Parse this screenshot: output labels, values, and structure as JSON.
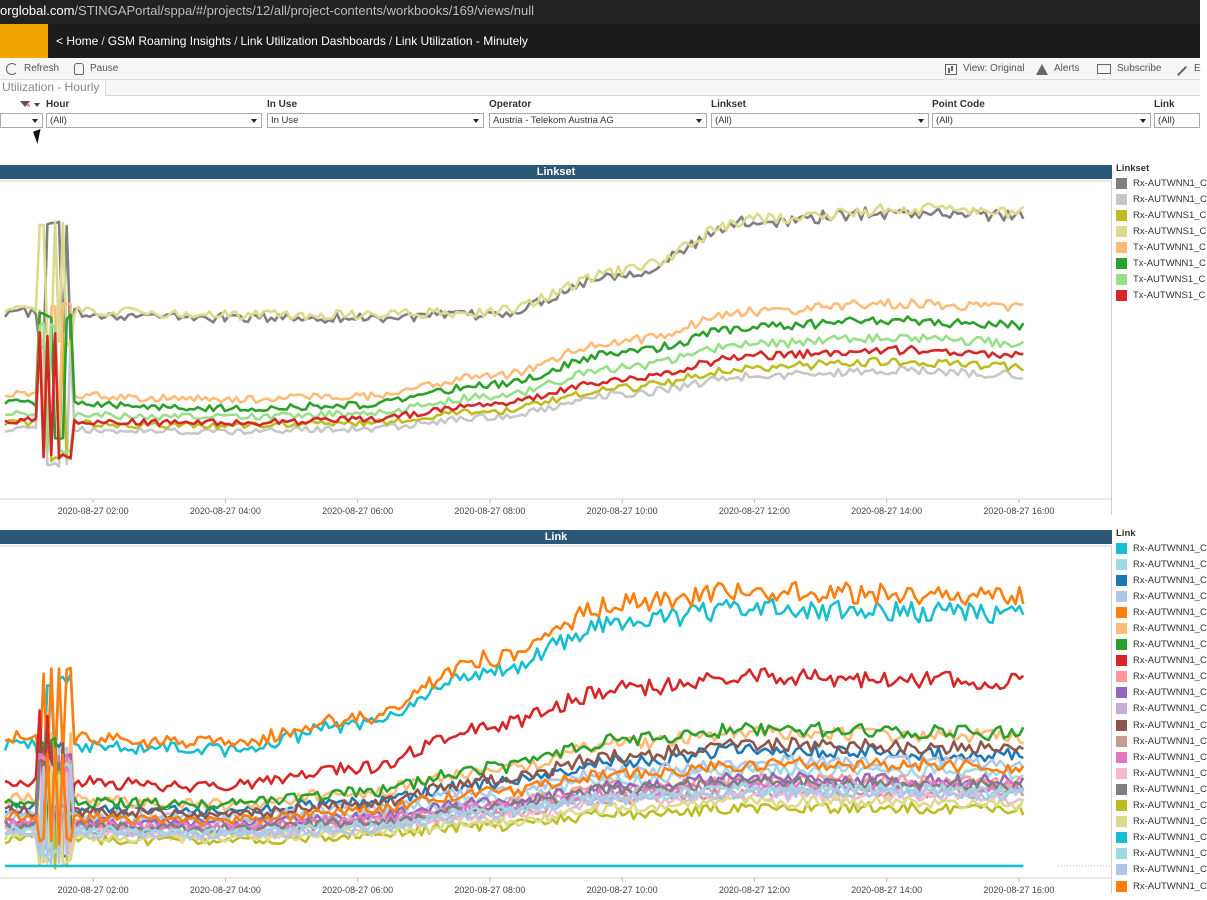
{
  "browser": {
    "url_host": "orglobal.com",
    "url_path": "/STINGAPortal/sppa/#/projects/12/all/project-contents/workbooks/169/views/null"
  },
  "breadcrumb": {
    "prefix": "< ",
    "items": [
      "Home",
      "GSM Roaming Insights",
      "Link Utilization Dashboards",
      "Link Utilization - Minutely"
    ]
  },
  "toolbar": {
    "refresh": "Refresh",
    "pause": "Pause",
    "view": "View: Original",
    "alerts": "Alerts",
    "subscribe": "Subscribe",
    "edit": "E"
  },
  "sheet_tab": {
    "label": "Utilization - Hourly"
  },
  "filters": [
    {
      "label": "",
      "value": ""
    },
    {
      "label": "Hour",
      "value": "(All)"
    },
    {
      "label": "In Use",
      "value": "In Use"
    },
    {
      "label": "Operator",
      "value": "Austria - Telekom Austria AG"
    },
    {
      "label": "Linkset",
      "value": "(All)"
    },
    {
      "label": "Point Code",
      "value": "(All)"
    },
    {
      "label": "Link",
      "value": "(All)"
    }
  ],
  "colors": {
    "header_bar": "#1b1b1b",
    "logo": "#f2a400",
    "chart_title_bg": "#2c5878"
  },
  "chart_data": [
    {
      "type": "line",
      "title": "Linkset",
      "x_ticks": [
        "2020-08-27 02:00",
        "2020-08-27 04:00",
        "2020-08-27 06:00",
        "2020-08-27 08:00",
        "2020-08-27 10:00",
        "2020-08-27 12:00",
        "2020-08-27 14:00",
        "2020-08-27 16:00"
      ],
      "xlim": [
        "2020-08-27 00:40",
        "2020-08-27 16:40"
      ],
      "legend_title": "Linkset",
      "legend_position": "right",
      "series": [
        {
          "name": "Rx-AUTWNN1_C",
          "color": "#7f7f7f",
          "values": [
            0.62,
            0.6,
            0.6,
            0.61,
            0.75,
            0.93,
            0.96,
            0.95
          ]
        },
        {
          "name": "Rx-AUTWNN1_C",
          "color": "#c7c7c7",
          "values": [
            0.22,
            0.21,
            0.22,
            0.26,
            0.34,
            0.4,
            0.42,
            0.4
          ]
        },
        {
          "name": "Rx-AUTWNS1_C",
          "color": "#bcbd22",
          "values": [
            0.24,
            0.23,
            0.24,
            0.28,
            0.36,
            0.43,
            0.45,
            0.43
          ]
        },
        {
          "name": "Rx-AUTWNS1_C",
          "color": "#dbdb8d",
          "values": [
            0.63,
            0.61,
            0.61,
            0.62,
            0.76,
            0.94,
            0.97,
            0.96
          ]
        },
        {
          "name": "Tx-AUTWNN1_C",
          "color": "#ffbb78",
          "values": [
            0.34,
            0.32,
            0.33,
            0.4,
            0.52,
            0.62,
            0.65,
            0.63
          ]
        },
        {
          "name": "Tx-AUTWNN1_C",
          "color": "#2ca02c",
          "values": [
            0.31,
            0.29,
            0.3,
            0.37,
            0.48,
            0.57,
            0.59,
            0.57
          ]
        },
        {
          "name": "Tx-AUTWNS1_C",
          "color": "#98df8a",
          "values": [
            0.27,
            0.26,
            0.27,
            0.33,
            0.43,
            0.51,
            0.53,
            0.51
          ]
        },
        {
          "name": "Tx-AUTWNS1_C",
          "color": "#d62728",
          "values": [
            0.25,
            0.24,
            0.25,
            0.3,
            0.39,
            0.47,
            0.49,
            0.47
          ]
        }
      ]
    },
    {
      "type": "line",
      "title": "Link",
      "x_ticks": [
        "2020-08-27 02:00",
        "2020-08-27 04:00",
        "2020-08-27 06:00",
        "2020-08-27 08:00",
        "2020-08-27 10:00",
        "2020-08-27 12:00",
        "2020-08-27 14:00",
        "2020-08-27 16:00"
      ],
      "xlim": [
        "2020-08-27 00:40",
        "2020-08-27 16:40"
      ],
      "legend_title": "Link",
      "legend_position": "right",
      "series": [
        {
          "name": "Rx-AUTWNN1_C",
          "color": "#17becf",
          "values": [
            0.42,
            0.4,
            0.48,
            0.66,
            0.82,
            0.86,
            0.85,
            0.84
          ]
        },
        {
          "name": "Rx-AUTWNN1_C",
          "color": "#9edae5",
          "values": [
            0.18,
            0.17,
            0.19,
            0.24,
            0.3,
            0.33,
            0.33,
            0.32
          ]
        },
        {
          "name": "Rx-AUTWNN1_C",
          "color": "#1f77b4",
          "values": [
            0.21,
            0.2,
            0.23,
            0.29,
            0.36,
            0.4,
            0.39,
            0.38
          ]
        },
        {
          "name": "Rx-AUTWNN1_C",
          "color": "#aec7e8",
          "values": [
            0.19,
            0.18,
            0.21,
            0.26,
            0.33,
            0.36,
            0.36,
            0.35
          ]
        },
        {
          "name": "Rx-AUTWNN1_C",
          "color": "#ff7f0e",
          "values": [
            0.44,
            0.42,
            0.5,
            0.7,
            0.88,
            0.92,
            0.91,
            0.9
          ]
        },
        {
          "name": "Rx-AUTWNN1_C",
          "color": "#ffbb78",
          "values": [
            0.24,
            0.22,
            0.26,
            0.33,
            0.42,
            0.46,
            0.45,
            0.44
          ]
        },
        {
          "name": "Rx-AUTWNN1_C",
          "color": "#2ca02c",
          "values": [
            0.23,
            0.22,
            0.26,
            0.34,
            0.43,
            0.47,
            0.46,
            0.45
          ]
        },
        {
          "name": "Rx-AUTWNN1_C",
          "color": "#d62728",
          "values": [
            0.3,
            0.28,
            0.34,
            0.48,
            0.6,
            0.64,
            0.63,
            0.62
          ]
        },
        {
          "name": "Rx-AUTWNN1_C",
          "color": "#ff9896",
          "values": [
            0.16,
            0.15,
            0.17,
            0.22,
            0.28,
            0.3,
            0.3,
            0.29
          ]
        },
        {
          "name": "Rx-AUTWNN1_C",
          "color": "#9467bd",
          "values": [
            0.17,
            0.16,
            0.18,
            0.23,
            0.28,
            0.31,
            0.3,
            0.3
          ]
        },
        {
          "name": "Rx-AUTWNN1_C",
          "color": "#c5b0d5",
          "values": [
            0.15,
            0.14,
            0.16,
            0.21,
            0.26,
            0.28,
            0.28,
            0.27
          ]
        },
        {
          "name": "Rx-AUTWNN1_C",
          "color": "#8c564b",
          "values": [
            0.2,
            0.19,
            0.22,
            0.3,
            0.38,
            0.42,
            0.41,
            0.4
          ]
        },
        {
          "name": "Rx-AUTWNN1_C",
          "color": "#c49c94",
          "values": [
            0.14,
            0.13,
            0.15,
            0.19,
            0.24,
            0.26,
            0.26,
            0.25
          ]
        },
        {
          "name": "Rx-AUTWNN1_C",
          "color": "#e377c2",
          "values": [
            0.16,
            0.15,
            0.17,
            0.21,
            0.26,
            0.29,
            0.28,
            0.28
          ]
        },
        {
          "name": "Rx-AUTWNN1_C",
          "color": "#f7b6d2",
          "values": [
            0.13,
            0.12,
            0.14,
            0.18,
            0.23,
            0.25,
            0.25,
            0.24
          ]
        },
        {
          "name": "Rx-AUTWNN1_C",
          "color": "#7f7f7f",
          "values": [
            0.15,
            0.14,
            0.16,
            0.21,
            0.27,
            0.29,
            0.29,
            0.28
          ]
        },
        {
          "name": "Rx-AUTWNN1_C",
          "color": "#bcbd22",
          "values": [
            0.11,
            0.1,
            0.12,
            0.15,
            0.19,
            0.21,
            0.21,
            0.2
          ]
        },
        {
          "name": "Rx-AUTWNN1_C",
          "color": "#dbdb8d",
          "values": [
            0.12,
            0.11,
            0.13,
            0.16,
            0.21,
            0.23,
            0.23,
            0.22
          ]
        },
        {
          "name": "Rx-AUTWNN1_C",
          "color": "#17becf",
          "values": [
            0.02,
            0.02,
            0.02,
            0.02,
            0.02,
            0.02,
            0.02,
            0.02
          ]
        },
        {
          "name": "Rx-AUTWNN1_C",
          "color": "#9edae5",
          "values": [
            0.14,
            0.13,
            0.15,
            0.2,
            0.25,
            0.27,
            0.27,
            0.26
          ]
        },
        {
          "name": "Rx-AUTWNN1_C",
          "color": "#aec7e8",
          "values": [
            0.13,
            0.12,
            0.14,
            0.19,
            0.24,
            0.26,
            0.26,
            0.25
          ]
        },
        {
          "name": "Rx-AUTWNN1_C",
          "color": "#ff7f0e",
          "values": [
            0.18,
            0.17,
            0.2,
            0.26,
            0.32,
            0.35,
            0.35,
            0.34
          ]
        }
      ]
    }
  ]
}
